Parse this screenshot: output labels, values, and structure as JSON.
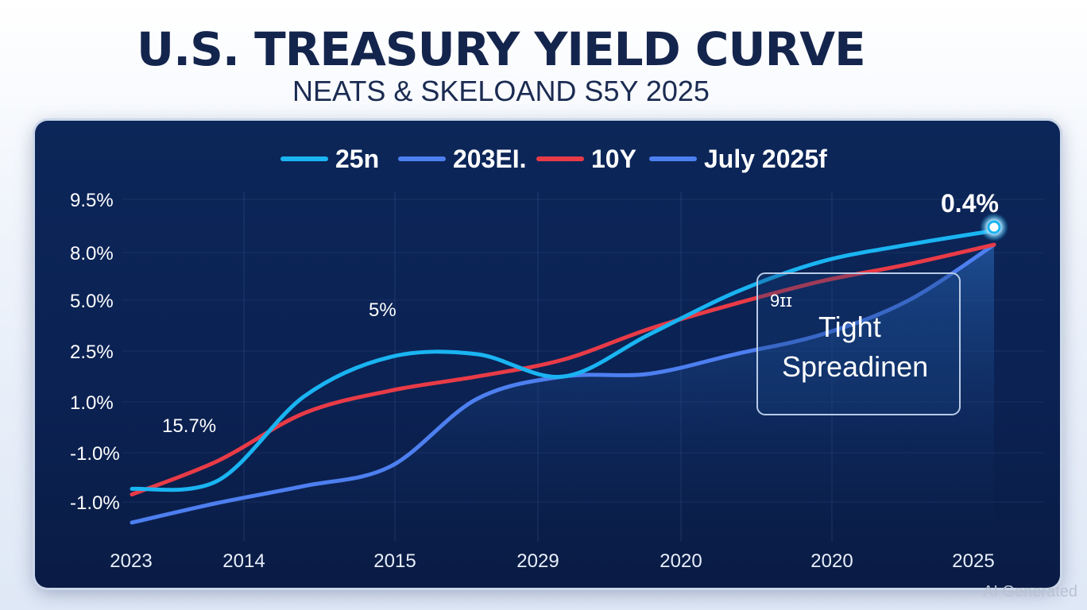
{
  "chart_data": {
    "type": "line",
    "title": "U.S. TREASURY YIELD CURVE",
    "subtitle": "NEATS & SKELOAND S5Y 2025",
    "x_ticks": [
      "2023",
      "2014",
      "2015",
      "2029",
      "2020",
      "2020",
      "2025"
    ],
    "y_ticks": [
      "9.5%",
      "8.0%",
      "5.0%",
      "2.5%",
      "1.0%",
      "-1.0%",
      "-1.0%"
    ],
    "grid": true,
    "legend_position": "top",
    "series": [
      {
        "name": "25n",
        "color": "#1ab4f2",
        "values": [
          -0.9,
          -0.6,
          2.4,
          3.8,
          3.9,
          3.1,
          4.6,
          6.1,
          7.2,
          7.8,
          8.3
        ]
      },
      {
        "name": "203EI.",
        "color": "#4d7ff0",
        "values": [
          -2.1,
          -1.4,
          -0.8,
          -0.1,
          2.3,
          3.1,
          3.2,
          3.9,
          4.6,
          5.8,
          7.8
        ]
      },
      {
        "name": "10Y",
        "color": "#e83b47",
        "values": [
          -1.1,
          0.1,
          1.8,
          2.6,
          3.1,
          3.7,
          4.8,
          5.7,
          6.5,
          7.1,
          7.8
        ]
      }
    ],
    "legend_extra": {
      "label": "July 2025f",
      "color": "#4d7ff0"
    },
    "annotations": {
      "start_label": "15.7%",
      "peak_label": "5%",
      "end_value": "0.4%",
      "box_small": "9ɪɪ",
      "box_line1": "Tight",
      "box_line2": "Spreadinen"
    }
  },
  "watermark": "AI Generated"
}
